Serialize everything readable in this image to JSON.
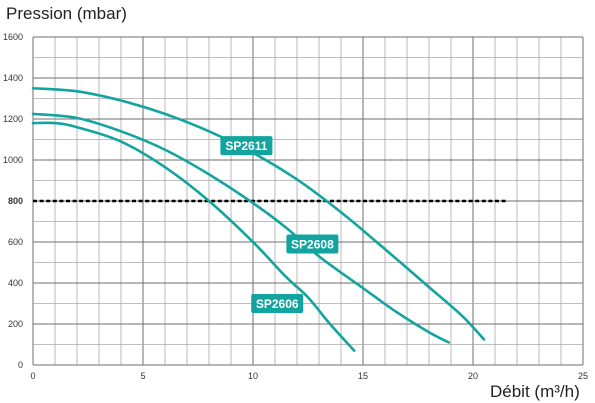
{
  "chart_data": {
    "type": "line",
    "ylabel": "Pression (mbar)",
    "xlabel": "Débit (m³/h)",
    "xlim": [
      0,
      25
    ],
    "ylim": [
      0,
      1600
    ],
    "xticks": [
      0,
      5,
      10,
      15,
      20,
      25
    ],
    "yticks": [
      0,
      200,
      400,
      600,
      800,
      1000,
      1200,
      1400,
      1600
    ],
    "grid": true,
    "line_color": "#13a49f",
    "reference_line": {
      "y": 800,
      "x_range": [
        0,
        21.5
      ],
      "style": "dashed",
      "color": "#000000"
    },
    "series": [
      {
        "name": "SP2611",
        "points": [
          [
            0,
            1350
          ],
          [
            2,
            1335
          ],
          [
            4,
            1290
          ],
          [
            6,
            1225
          ],
          [
            8,
            1140
          ],
          [
            10,
            1035
          ],
          [
            12,
            905
          ],
          [
            14,
            745
          ],
          [
            16,
            565
          ],
          [
            18,
            380
          ],
          [
            19.5,
            240
          ],
          [
            20.5,
            125
          ]
        ]
      },
      {
        "name": "SP2608",
        "points": [
          [
            0,
            1225
          ],
          [
            2,
            1205
          ],
          [
            4,
            1140
          ],
          [
            6,
            1050
          ],
          [
            8,
            930
          ],
          [
            10,
            790
          ],
          [
            11.5,
            670
          ],
          [
            13,
            530
          ],
          [
            15,
            375
          ],
          [
            16.5,
            260
          ],
          [
            18,
            160
          ],
          [
            18.9,
            110
          ]
        ]
      },
      {
        "name": "SP2606",
        "points": [
          [
            0,
            1180
          ],
          [
            1,
            1180
          ],
          [
            2,
            1160
          ],
          [
            4,
            1090
          ],
          [
            6,
            965
          ],
          [
            8,
            800
          ],
          [
            10,
            600
          ],
          [
            11.5,
            430
          ],
          [
            12.5,
            330
          ],
          [
            13.5,
            200
          ],
          [
            14.6,
            70
          ]
        ]
      }
    ],
    "labels": [
      {
        "series": "SP2611",
        "text": "SP2611",
        "x": 9.7,
        "y": 1070
      },
      {
        "series": "SP2608",
        "text": "SP2608",
        "x": 12.7,
        "y": 590
      },
      {
        "series": "SP2606",
        "text": "SP2606",
        "x": 11.1,
        "y": 300
      }
    ]
  }
}
